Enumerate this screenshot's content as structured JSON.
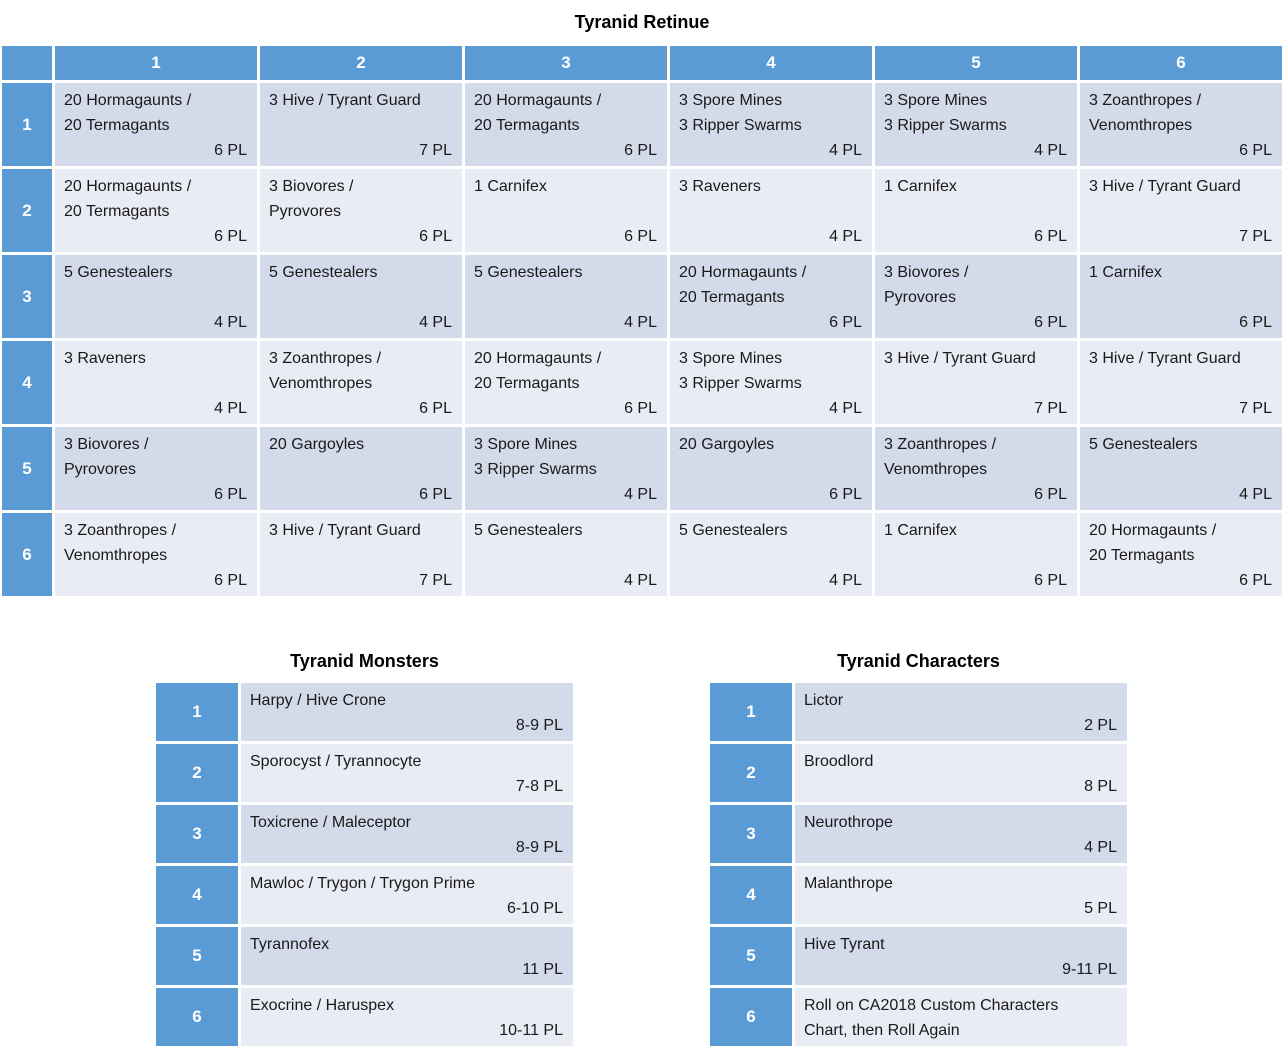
{
  "colors": {
    "header_blue": "#5B9BD5",
    "band_dark": "#D3DAE9",
    "band_light": "#E9ECF4",
    "body_text": "#1a1a1a",
    "header_text": "#FFFFFF"
  },
  "retinue": {
    "title": "Tyranid Retinue",
    "column_headers": [
      "1",
      "2",
      "3",
      "4",
      "5",
      "6"
    ],
    "row_headers": [
      "1",
      "2",
      "3",
      "4",
      "5",
      "6"
    ],
    "rows": [
      [
        {
          "unit": "20 Hormagaunts /\n20 Termagants",
          "pl": "6 PL"
        },
        {
          "unit": "3 Hive / Tyrant Guard",
          "pl": "7 PL"
        },
        {
          "unit": "20 Hormagaunts /\n20 Termagants",
          "pl": "6 PL"
        },
        {
          "unit": "3 Spore Mines\n3 Ripper Swarms",
          "pl": "4 PL"
        },
        {
          "unit": "3 Spore Mines\n3 Ripper Swarms",
          "pl": "4 PL"
        },
        {
          "unit": "3 Zoanthropes /\nVenomthropes",
          "pl": "6 PL"
        }
      ],
      [
        {
          "unit": "20 Hormagaunts /\n20 Termagants",
          "pl": "6 PL"
        },
        {
          "unit": "3 Biovores /\nPyrovores",
          "pl": "6 PL"
        },
        {
          "unit": "1 Carnifex",
          "pl": "6 PL"
        },
        {
          "unit": "3 Raveners",
          "pl": "4 PL"
        },
        {
          "unit": "1 Carnifex",
          "pl": "6 PL"
        },
        {
          "unit": "3 Hive / Tyrant Guard",
          "pl": "7 PL"
        }
      ],
      [
        {
          "unit": "5 Genestealers",
          "pl": "4 PL"
        },
        {
          "unit": "5 Genestealers",
          "pl": "4 PL"
        },
        {
          "unit": "5 Genestealers",
          "pl": "4 PL"
        },
        {
          "unit": "20 Hormagaunts /\n20 Termagants",
          "pl": "6 PL"
        },
        {
          "unit": "3 Biovores /\nPyrovores",
          "pl": "6 PL"
        },
        {
          "unit": "1 Carnifex",
          "pl": "6 PL"
        }
      ],
      [
        {
          "unit": "3 Raveners",
          "pl": "4 PL"
        },
        {
          "unit": "3 Zoanthropes /\nVenomthropes",
          "pl": "6 PL"
        },
        {
          "unit": "20 Hormagaunts /\n20 Termagants",
          "pl": "6 PL"
        },
        {
          "unit": "3 Spore Mines\n3 Ripper Swarms",
          "pl": "4 PL"
        },
        {
          "unit": "3 Hive / Tyrant Guard",
          "pl": "7 PL"
        },
        {
          "unit": "3 Hive / Tyrant Guard",
          "pl": "7 PL"
        }
      ],
      [
        {
          "unit": "3 Biovores /\nPyrovores",
          "pl": "6 PL"
        },
        {
          "unit": "20 Gargoyles",
          "pl": "6 PL"
        },
        {
          "unit": "3 Spore Mines\n3 Ripper Swarms",
          "pl": "4 PL"
        },
        {
          "unit": "20 Gargoyles",
          "pl": "6 PL"
        },
        {
          "unit": "3 Zoanthropes /\nVenomthropes",
          "pl": "6 PL"
        },
        {
          "unit": "5 Genestealers",
          "pl": "4 PL"
        }
      ],
      [
        {
          "unit": "3 Zoanthropes /\nVenomthropes",
          "pl": "6 PL"
        },
        {
          "unit": "3 Hive / Tyrant Guard",
          "pl": "7 PL"
        },
        {
          "unit": "5 Genestealers",
          "pl": "4 PL"
        },
        {
          "unit": "5 Genestealers",
          "pl": "4 PL"
        },
        {
          "unit": "1 Carnifex",
          "pl": "6 PL"
        },
        {
          "unit": "20 Hormagaunts /\n20 Termagants",
          "pl": "6 PL"
        }
      ]
    ]
  },
  "monsters": {
    "title": "Tyranid Monsters",
    "rows": [
      {
        "roll": "1",
        "unit": "Harpy / Hive Crone",
        "pl": "8-9 PL"
      },
      {
        "roll": "2",
        "unit": "Sporocyst / Tyrannocyte",
        "pl": "7-8 PL"
      },
      {
        "roll": "3",
        "unit": "Toxicrene / Maleceptor",
        "pl": "8-9 PL"
      },
      {
        "roll": "4",
        "unit": "Mawloc / Trygon / Trygon Prime",
        "pl": "6-10 PL"
      },
      {
        "roll": "5",
        "unit": "Tyrannofex",
        "pl": "11 PL"
      },
      {
        "roll": "6",
        "unit": "Exocrine / Haruspex",
        "pl": "10-11 PL"
      }
    ]
  },
  "characters": {
    "title": "Tyranid Characters",
    "rows": [
      {
        "roll": "1",
        "unit": "Lictor",
        "pl": "2 PL"
      },
      {
        "roll": "2",
        "unit": "Broodlord",
        "pl": "8 PL"
      },
      {
        "roll": "3",
        "unit": "Neurothrope",
        "pl": "4 PL"
      },
      {
        "roll": "4",
        "unit": "Malanthrope",
        "pl": "5 PL"
      },
      {
        "roll": "5",
        "unit": "Hive Tyrant",
        "pl": "9-11 PL"
      },
      {
        "roll": "6",
        "unit": "Roll on CA2018 Custom Characters\nChart, then Roll Again",
        "pl": ""
      }
    ]
  }
}
